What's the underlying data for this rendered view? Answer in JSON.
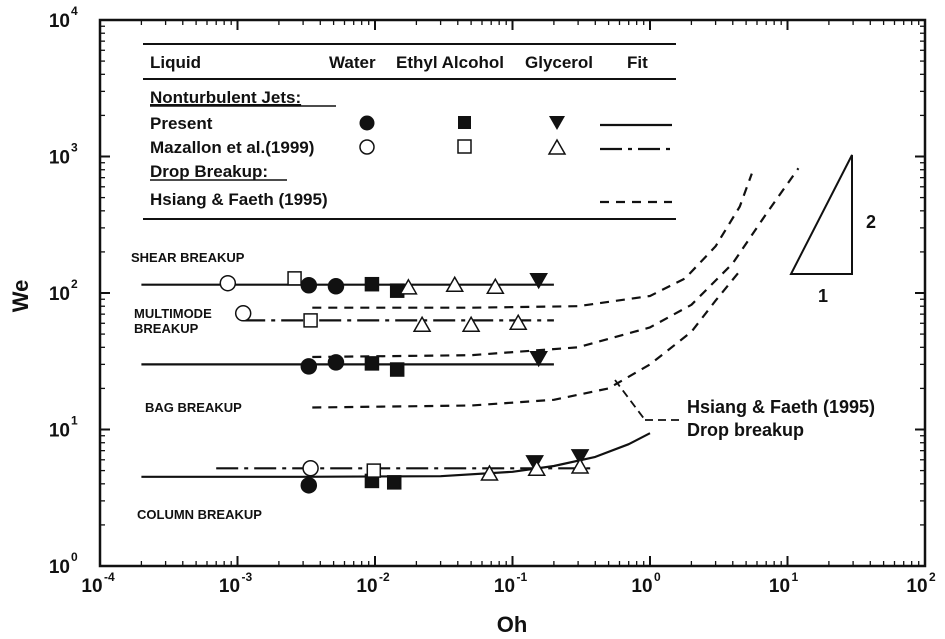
{
  "chart_data": {
    "type": "scatter",
    "title": "",
    "xlabel": "Oh",
    "ylabel": "We",
    "xscale": "log",
    "yscale": "log",
    "xlim": [
      0.0001,
      100
    ],
    "ylim": [
      1,
      10000
    ],
    "x_ticks": [
      {
        "base": "10",
        "exp": "-4",
        "value": 0.0001
      },
      {
        "base": "10",
        "exp": "-3",
        "value": 0.001
      },
      {
        "base": "10",
        "exp": "-2",
        "value": 0.01
      },
      {
        "base": "10",
        "exp": "-1",
        "value": 0.1
      },
      {
        "base": "10",
        "exp": "0",
        "value": 1
      },
      {
        "base": "10",
        "exp": "1",
        "value": 10
      },
      {
        "base": "10",
        "exp": "2",
        "value": 100
      }
    ],
    "y_ticks": [
      {
        "base": "10",
        "exp": "0",
        "value": 1
      },
      {
        "base": "10",
        "exp": "1",
        "value": 10
      },
      {
        "base": "10",
        "exp": "2",
        "value": 100
      },
      {
        "base": "10",
        "exp": "3",
        "value": 1000
      },
      {
        "base": "10",
        "exp": "4",
        "value": 10000
      }
    ],
    "legend": {
      "placement": "top-left",
      "header": {
        "liquid": "Liquid",
        "water": "Water",
        "ethyl": "Ethyl Alcohol",
        "glycerol": "Glycerol",
        "fit": "Fit"
      },
      "group1": "Nonturbulent Jets:",
      "present": "Present",
      "mazallon": "Mazallon et al.(1999)",
      "group2": "Drop Breakup:",
      "hsiang": "Hsiang & Faeth (1995)"
    },
    "regimes": {
      "shear": "SHEAR BREAKUP",
      "multimode1": "MULTIMODE",
      "multimode2": "BREAKUP",
      "bag": "BAG BREAKUP",
      "column": "COLUMN BREAKUP"
    },
    "annotation": {
      "line1": "Hsiang & Faeth (1995)",
      "line2": "Drop breakup"
    },
    "slope_triangle": {
      "rise_label": "2",
      "run_label": "1"
    },
    "series": [
      {
        "name": "Present - Water",
        "marker": "circle",
        "filled": true,
        "points": [
          [
            0.0033,
            114
          ],
          [
            0.0052,
            112
          ],
          [
            0.0033,
            29
          ],
          [
            0.0052,
            31
          ],
          [
            0.0033,
            3.9
          ]
        ]
      },
      {
        "name": "Present - Ethyl Alcohol",
        "marker": "square",
        "filled": true,
        "points": [
          [
            0.0095,
            116
          ],
          [
            0.0145,
            104
          ],
          [
            0.0095,
            30.5
          ],
          [
            0.0145,
            27.5
          ],
          [
            0.0095,
            4.2
          ],
          [
            0.0138,
            4.1
          ]
        ]
      },
      {
        "name": "Present - Glycerol",
        "marker": "triangle-down",
        "filled": true,
        "points": [
          [
            0.155,
            123
          ],
          [
            0.155,
            33
          ],
          [
            0.145,
            5.7
          ],
          [
            0.31,
            6.3
          ]
        ]
      },
      {
        "name": "Mazallon et al.(1999) - Water",
        "marker": "circle",
        "filled": false,
        "points": [
          [
            0.00085,
            118
          ],
          [
            0.0011,
            71
          ],
          [
            0.0034,
            5.2
          ]
        ]
      },
      {
        "name": "Mazallon et al.(1999) - Ethyl Alcohol",
        "marker": "square",
        "filled": false,
        "points": [
          [
            0.0026,
            128
          ],
          [
            0.0034,
            63
          ],
          [
            0.0098,
            5.0
          ]
        ]
      },
      {
        "name": "Mazallon et al.(1999) - Glycerol",
        "marker": "triangle-up",
        "filled": false,
        "points": [
          [
            0.0175,
            111
          ],
          [
            0.038,
            116
          ],
          [
            0.075,
            112
          ],
          [
            0.022,
            59
          ],
          [
            0.05,
            59
          ],
          [
            0.11,
            61
          ],
          [
            0.068,
            4.8
          ],
          [
            0.15,
            5.2
          ],
          [
            0.31,
            5.4
          ]
        ]
      }
    ],
    "fit_lines": [
      {
        "name": "Present fit (shear)",
        "style": "solid",
        "points": [
          [
            0.0002,
            115
          ],
          [
            0.2,
            115
          ]
        ]
      },
      {
        "name": "Present fit (bag)",
        "style": "solid",
        "points": [
          [
            0.0002,
            30
          ],
          [
            0.2,
            30
          ]
        ]
      },
      {
        "name": "Present fit (column)",
        "style": "solid",
        "points": [
          [
            0.0002,
            4.5
          ],
          [
            0.003,
            4.5
          ],
          [
            0.03,
            4.55
          ],
          [
            0.1,
            4.9
          ],
          [
            0.2,
            5.4
          ],
          [
            0.4,
            6.3
          ],
          [
            0.7,
            7.8
          ],
          [
            1,
            9.4
          ]
        ]
      },
      {
        "name": "Mazallon fit (multimode)",
        "style": "dashdot",
        "points": [
          [
            0.0011,
            63
          ],
          [
            0.2,
            63
          ]
        ]
      },
      {
        "name": "Mazallon fit (column)",
        "style": "dashdot",
        "points": [
          [
            0.0007,
            5.2
          ],
          [
            0.4,
            5.2
          ]
        ]
      },
      {
        "name": "Hsiang & Faeth curve 1",
        "style": "dashed",
        "points": [
          [
            0.0035,
            78
          ],
          [
            0.05,
            78
          ],
          [
            0.3,
            80
          ],
          [
            1,
            95
          ],
          [
            1.8,
            128
          ],
          [
            3,
            220
          ],
          [
            4.5,
            430
          ],
          [
            5.5,
            750
          ]
        ]
      },
      {
        "name": "Hsiang & Faeth curve 2",
        "style": "dashed",
        "points": [
          [
            0.0035,
            34
          ],
          [
            0.05,
            35
          ],
          [
            0.3,
            40
          ],
          [
            1,
            56
          ],
          [
            2,
            82
          ],
          [
            4,
            165
          ],
          [
            7,
            380
          ],
          [
            12,
            820
          ]
        ]
      },
      {
        "name": "Hsiang & Faeth curve 3",
        "style": "dashed",
        "points": [
          [
            0.0035,
            14.5
          ],
          [
            0.05,
            15
          ],
          [
            0.2,
            16.5
          ],
          [
            0.5,
            20
          ],
          [
            1,
            30
          ],
          [
            2,
            52
          ],
          [
            3,
            88
          ],
          [
            4.5,
            145
          ]
        ]
      }
    ]
  }
}
